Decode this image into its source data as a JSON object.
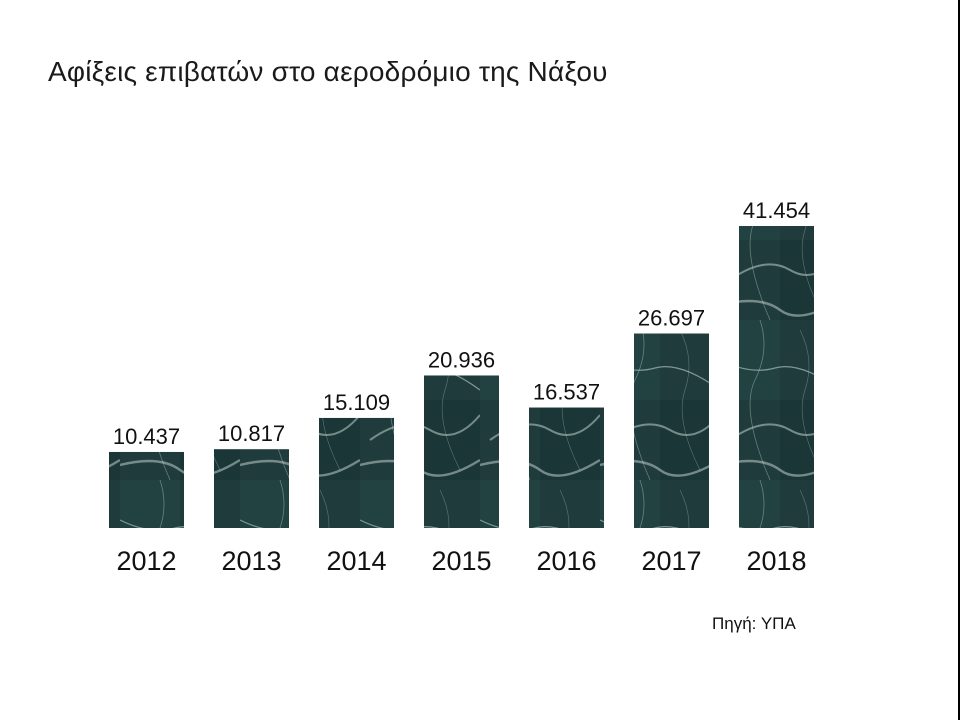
{
  "chart_data": {
    "type": "bar",
    "title": "Αφίξεις επιβατών στο αεροδρόμιο της Νάξου",
    "categories": [
      "2012",
      "2013",
      "2014",
      "2015",
      "2016",
      "2017",
      "2018"
    ],
    "values": [
      10437,
      10817,
      15109,
      20936,
      16537,
      26697,
      41454
    ],
    "value_labels": [
      "10.437",
      "10.817",
      "15.109",
      "20.936",
      "16.537",
      "26.697",
      "41.454"
    ],
    "ylim": [
      0,
      45000
    ],
    "grid": false,
    "legend": "none",
    "xlabel": "",
    "ylabel": "",
    "bar_texture": "dark green marble",
    "colors": {
      "bar": "#1f3b3b",
      "bar_vein": "#cfe0dc",
      "text": "#111111"
    }
  },
  "source": "Πηγή: ΥΠΑ"
}
